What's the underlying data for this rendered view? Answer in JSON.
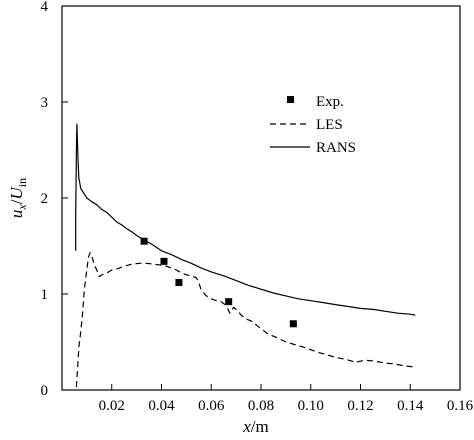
{
  "chart_data": {
    "type": "line",
    "title": "",
    "xlabel": {
      "italic": "x",
      "unit": "/m"
    },
    "ylabel": {
      "italic_num": "u",
      "sub_num": "x",
      "sep": "/",
      "italic_den": "U",
      "sub_den": "in"
    },
    "xlim": [
      0.0,
      0.16
    ],
    "ylim": [
      0,
      4
    ],
    "xticks": [
      0.02,
      0.04,
      0.06,
      0.08,
      0.1,
      0.12,
      0.14,
      0.16
    ],
    "xtick_labels": [
      "0.02",
      "0.04",
      "0.06",
      "0.08",
      "0.10",
      "0.12",
      "0.14",
      "0.16"
    ],
    "yticks": [
      0,
      1,
      2,
      3,
      4
    ],
    "ytick_labels": [
      "0",
      "1",
      "2",
      "3",
      "4"
    ],
    "grid": false,
    "legend_position": "top-right",
    "legend": [
      {
        "label": "Exp.",
        "style": "square-marker"
      },
      {
        "label": "LES",
        "style": "dashed"
      },
      {
        "label": "RANS",
        "style": "solid"
      }
    ],
    "series": [
      {
        "name": "Exp.",
        "style": "scatter",
        "x": [
          0.033,
          0.041,
          0.047,
          0.067,
          0.093
        ],
        "y": [
          1.55,
          1.34,
          1.12,
          0.92,
          0.69
        ]
      },
      {
        "name": "LES",
        "style": "dashed",
        "x": [
          0.0058,
          0.0062,
          0.0068,
          0.0075,
          0.0082,
          0.009,
          0.0098,
          0.0106,
          0.0113,
          0.012,
          0.013,
          0.014,
          0.015,
          0.016,
          0.018,
          0.02,
          0.022,
          0.025,
          0.028,
          0.031,
          0.034,
          0.037,
          0.04,
          0.042,
          0.044,
          0.046,
          0.048,
          0.05,
          0.052,
          0.054,
          0.055,
          0.056,
          0.058,
          0.06,
          0.062,
          0.064,
          0.066,
          0.0675,
          0.069,
          0.0705,
          0.072,
          0.074,
          0.076,
          0.078,
          0.08,
          0.083,
          0.086,
          0.09,
          0.094,
          0.098,
          0.102,
          0.106,
          0.11,
          0.114,
          0.118,
          0.122,
          0.126,
          0.13,
          0.134,
          0.138,
          0.142
        ],
        "y": [
          0.03,
          0.2,
          0.45,
          0.6,
          0.78,
          1.05,
          1.22,
          1.38,
          1.43,
          1.4,
          1.3,
          1.25,
          1.18,
          1.2,
          1.22,
          1.25,
          1.26,
          1.29,
          1.31,
          1.32,
          1.32,
          1.31,
          1.3,
          1.29,
          1.27,
          1.25,
          1.22,
          1.2,
          1.19,
          1.17,
          1.12,
          1.04,
          0.98,
          0.95,
          0.93,
          0.92,
          0.88,
          0.8,
          0.86,
          0.83,
          0.78,
          0.74,
          0.72,
          0.68,
          0.64,
          0.58,
          0.55,
          0.5,
          0.47,
          0.44,
          0.4,
          0.37,
          0.34,
          0.32,
          0.29,
          0.31,
          0.3,
          0.28,
          0.27,
          0.25,
          0.24
        ]
      },
      {
        "name": "RANS",
        "style": "solid",
        "x": [
          0.0055,
          0.0055,
          0.0058,
          0.006,
          0.0062,
          0.0065,
          0.0068,
          0.007,
          0.0075,
          0.008,
          0.009,
          0.01,
          0.012,
          0.014,
          0.016,
          0.018,
          0.02,
          0.022,
          0.024,
          0.026,
          0.028,
          0.03,
          0.033,
          0.036,
          0.04,
          0.044,
          0.048,
          0.052,
          0.056,
          0.06,
          0.065,
          0.07,
          0.075,
          0.08,
          0.085,
          0.09,
          0.095,
          0.1,
          0.105,
          0.11,
          0.115,
          0.12,
          0.125,
          0.13,
          0.135,
          0.14,
          0.142
        ],
        "y": [
          1.45,
          1.8,
          2.5,
          2.77,
          2.6,
          2.35,
          2.2,
          2.18,
          2.1,
          2.08,
          2.04,
          2.0,
          1.96,
          1.93,
          1.88,
          1.85,
          1.8,
          1.75,
          1.72,
          1.68,
          1.65,
          1.61,
          1.56,
          1.52,
          1.45,
          1.41,
          1.36,
          1.32,
          1.27,
          1.23,
          1.19,
          1.14,
          1.09,
          1.05,
          1.01,
          0.98,
          0.95,
          0.93,
          0.91,
          0.89,
          0.87,
          0.85,
          0.84,
          0.82,
          0.8,
          0.79,
          0.78
        ]
      }
    ]
  }
}
